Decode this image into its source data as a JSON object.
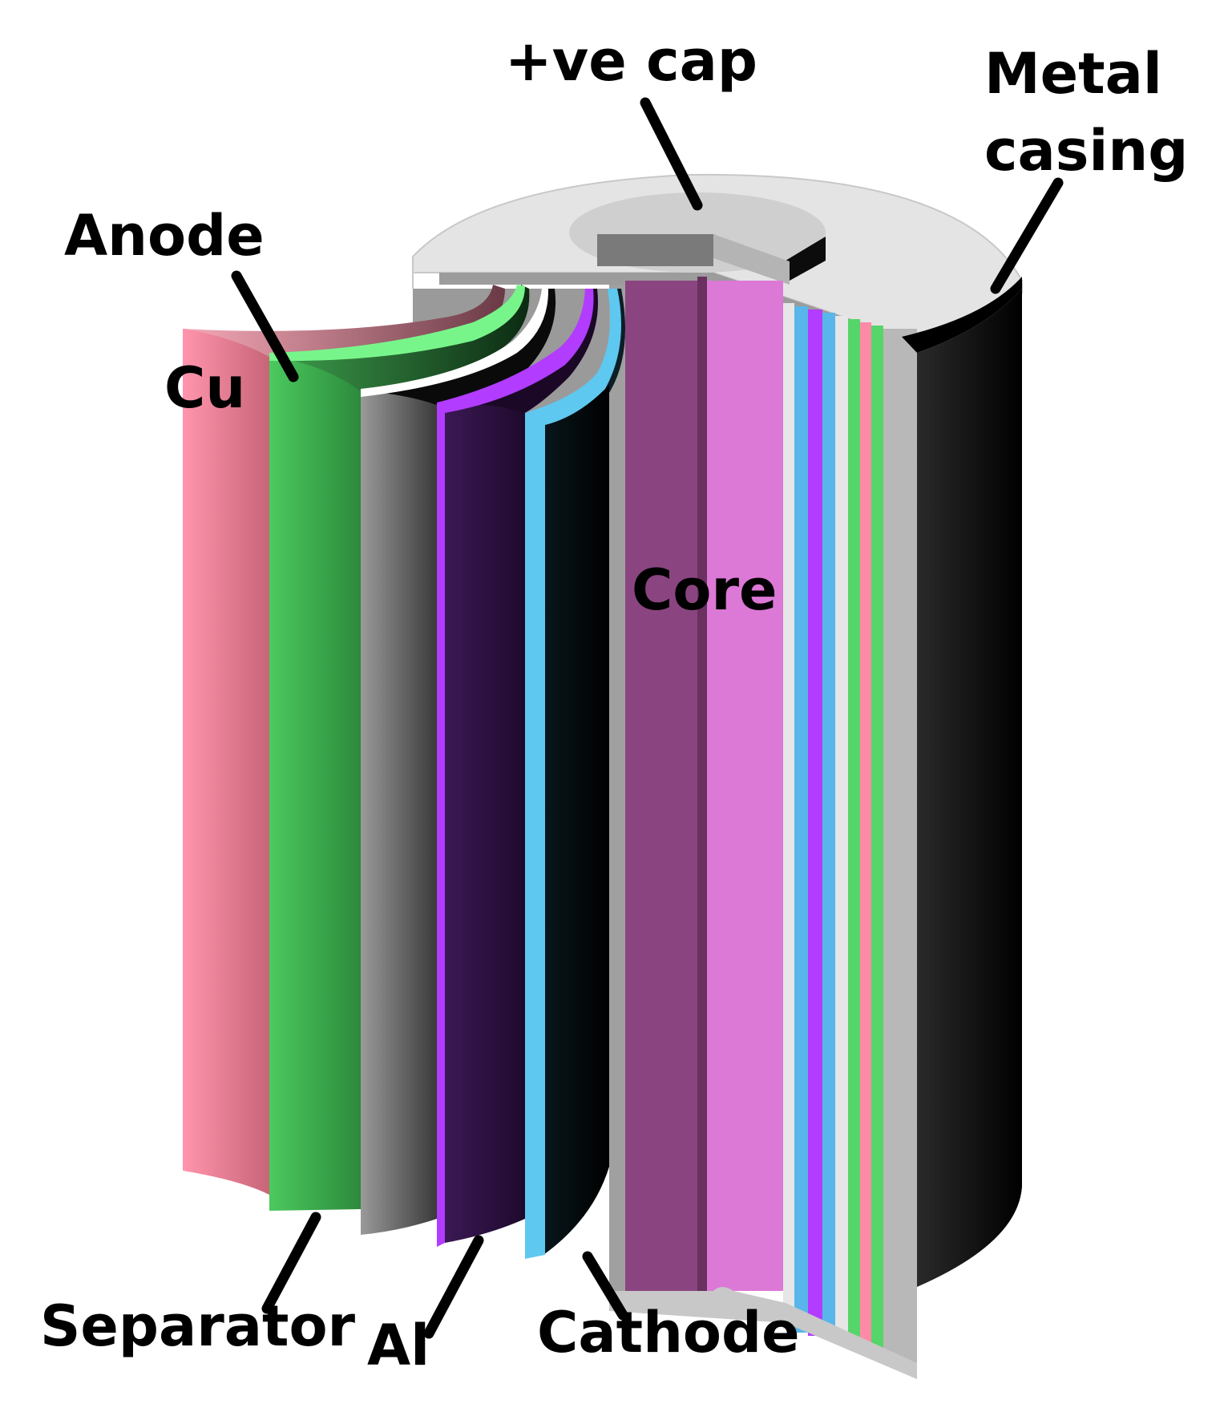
{
  "diagram": {
    "subject": "Cylindrical battery cell cutaway",
    "labels": {
      "cap": "+ve cap",
      "casing_line1": "Metal",
      "casing_line2": "casing",
      "anode": "Anode",
      "cu": "Cu",
      "core": "Core",
      "separator": "Separator",
      "al": "Al",
      "cathode": "Cathode"
    },
    "colors": {
      "copper_foil": "#f48aa0",
      "anode": "#3fbd55",
      "separator": "#8a8a8a",
      "aluminium_foil": "#b23cff",
      "cathode": "#111111",
      "cathode_edge": "#5ec8f0",
      "core": "#8a4580",
      "core_light": "#dc78d6",
      "casing_cap": "#e2e2e2",
      "casing_body": "#111111"
    }
  }
}
